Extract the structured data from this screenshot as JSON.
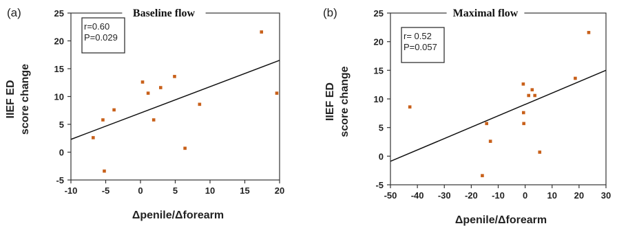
{
  "chart_data": [
    {
      "type": "scatter",
      "panel": "(a)",
      "title": "Baseline flow",
      "xlabel": "Δpenile/Δforearm",
      "ylabel": [
        "IIEF ED",
        "score change"
      ],
      "xlim": [
        -10,
        20
      ],
      "ylim": [
        -5,
        25
      ],
      "xticks": [
        "-10",
        "-5",
        "0",
        "5",
        "10",
        "15",
        "20"
      ],
      "yticks": [
        "-5",
        "0",
        "5",
        "10",
        "15",
        "20",
        "25"
      ],
      "stats": [
        "r=0.60",
        "P=0.029"
      ],
      "points": [
        {
          "x": -6.8,
          "y": 2.6
        },
        {
          "x": -5.4,
          "y": 5.8
        },
        {
          "x": -5.2,
          "y": -3.4
        },
        {
          "x": -3.8,
          "y": 7.6
        },
        {
          "x": 0.3,
          "y": 12.6
        },
        {
          "x": 1.1,
          "y": 10.6
        },
        {
          "x": 1.9,
          "y": 5.8
        },
        {
          "x": 2.9,
          "y": 11.6
        },
        {
          "x": 4.9,
          "y": 13.6
        },
        {
          "x": 6.4,
          "y": 0.7
        },
        {
          "x": 8.5,
          "y": 8.6
        },
        {
          "x": 17.4,
          "y": 21.6
        },
        {
          "x": 19.6,
          "y": 10.6
        }
      ],
      "fit_line": {
        "x": [
          -10,
          20
        ],
        "y": [
          2.3,
          16.5
        ]
      },
      "grid": false,
      "colors": {
        "points": "#c8601a",
        "line": "#111111"
      }
    },
    {
      "type": "scatter",
      "panel": "(b)",
      "title": "Maximal flow",
      "xlabel": "Δpenile/Δforearm",
      "ylabel": [
        "IIEF ED",
        "score change"
      ],
      "xlim": [
        -50,
        30
      ],
      "ylim": [
        -5,
        25
      ],
      "xticks": [
        "-50",
        "-40",
        "-30",
        "-20",
        "-10",
        "0",
        "10",
        "20",
        "30"
      ],
      "yticks": [
        "-5",
        "0",
        "5",
        "10",
        "15",
        "20",
        "25"
      ],
      "stats": [
        "r= 0.52",
        "P=0.057"
      ],
      "points": [
        {
          "x": -42.8,
          "y": 8.6
        },
        {
          "x": -15.9,
          "y": -3.4
        },
        {
          "x": -14.3,
          "y": 5.7
        },
        {
          "x": -12.9,
          "y": 2.6
        },
        {
          "x": -0.7,
          "y": 12.6
        },
        {
          "x": -0.6,
          "y": 7.6
        },
        {
          "x": -0.5,
          "y": 5.7
        },
        {
          "x": 1.3,
          "y": 10.6
        },
        {
          "x": 2.6,
          "y": 11.6
        },
        {
          "x": 3.6,
          "y": 10.6
        },
        {
          "x": 5.4,
          "y": 0.7
        },
        {
          "x": 18.6,
          "y": 13.6
        },
        {
          "x": 23.6,
          "y": 21.6
        }
      ],
      "fit_line": {
        "x": [
          -50,
          30
        ],
        "y": [
          -0.9,
          15.0
        ]
      },
      "grid": false,
      "colors": {
        "points": "#c8601a",
        "line": "#111111"
      }
    }
  ]
}
